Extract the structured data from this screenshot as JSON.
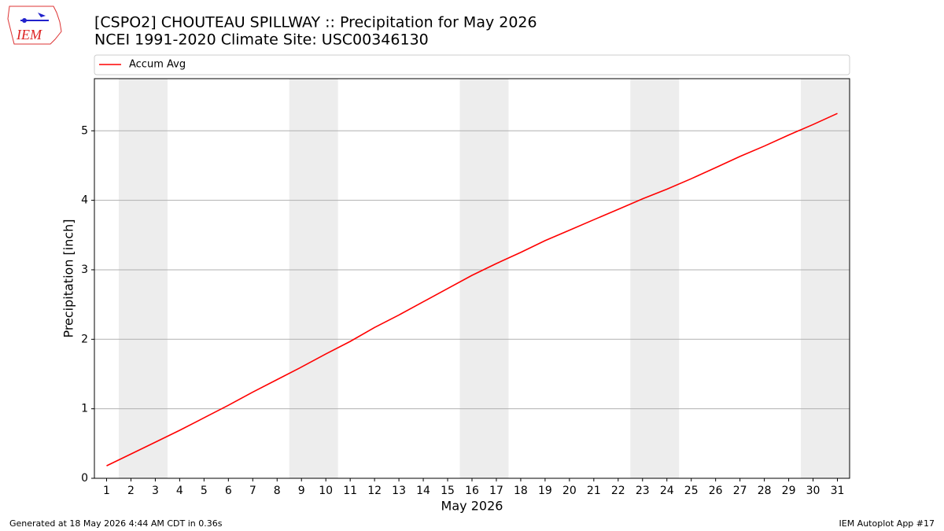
{
  "chart_data": {
    "type": "line",
    "title": "[CSPO2] CHOUTEAU SPILLWAY :: Precipitation for May 2026",
    "subtitle": "NCEI 1991-2020 Climate Site: USC00346130",
    "xlabel": "May 2026",
    "ylabel": "Precipitation [inch]",
    "x": [
      1,
      2,
      3,
      4,
      5,
      6,
      7,
      8,
      9,
      10,
      11,
      12,
      13,
      14,
      15,
      16,
      17,
      18,
      19,
      20,
      21,
      22,
      23,
      24,
      25,
      26,
      27,
      28,
      29,
      30,
      31
    ],
    "series": [
      {
        "name": "Accum Avg",
        "color": "#ff0000",
        "values": [
          0.18,
          0.35,
          0.52,
          0.69,
          0.87,
          1.05,
          1.24,
          1.42,
          1.6,
          1.79,
          1.97,
          2.17,
          2.35,
          2.54,
          2.73,
          2.92,
          3.09,
          3.25,
          3.42,
          3.57,
          3.72,
          3.87,
          4.02,
          4.16,
          4.31,
          4.47,
          4.63,
          4.78,
          4.94,
          5.09,
          5.25
        ]
      }
    ],
    "xlim": [
      0.5,
      31.5
    ],
    "ylim": [
      0,
      5.75
    ],
    "xticks": [
      1,
      2,
      3,
      4,
      5,
      6,
      7,
      8,
      9,
      10,
      11,
      12,
      13,
      14,
      15,
      16,
      17,
      18,
      19,
      20,
      21,
      22,
      23,
      24,
      25,
      26,
      27,
      28,
      29,
      30,
      31
    ],
    "yticks": [
      0,
      1,
      2,
      3,
      4,
      5
    ],
    "grid": true,
    "legend": "top",
    "shade_spans": [
      [
        1.5,
        3.5
      ],
      [
        8.5,
        10.5
      ],
      [
        15.5,
        17.5
      ],
      [
        22.5,
        24.5
      ],
      [
        29.5,
        31.5
      ]
    ],
    "shade_color": "#ededed"
  },
  "logo": "IEM",
  "footer_left": "Generated at 18 May 2026 4:44 AM CDT in 0.36s",
  "footer_right": "IEM Autoplot App #17"
}
